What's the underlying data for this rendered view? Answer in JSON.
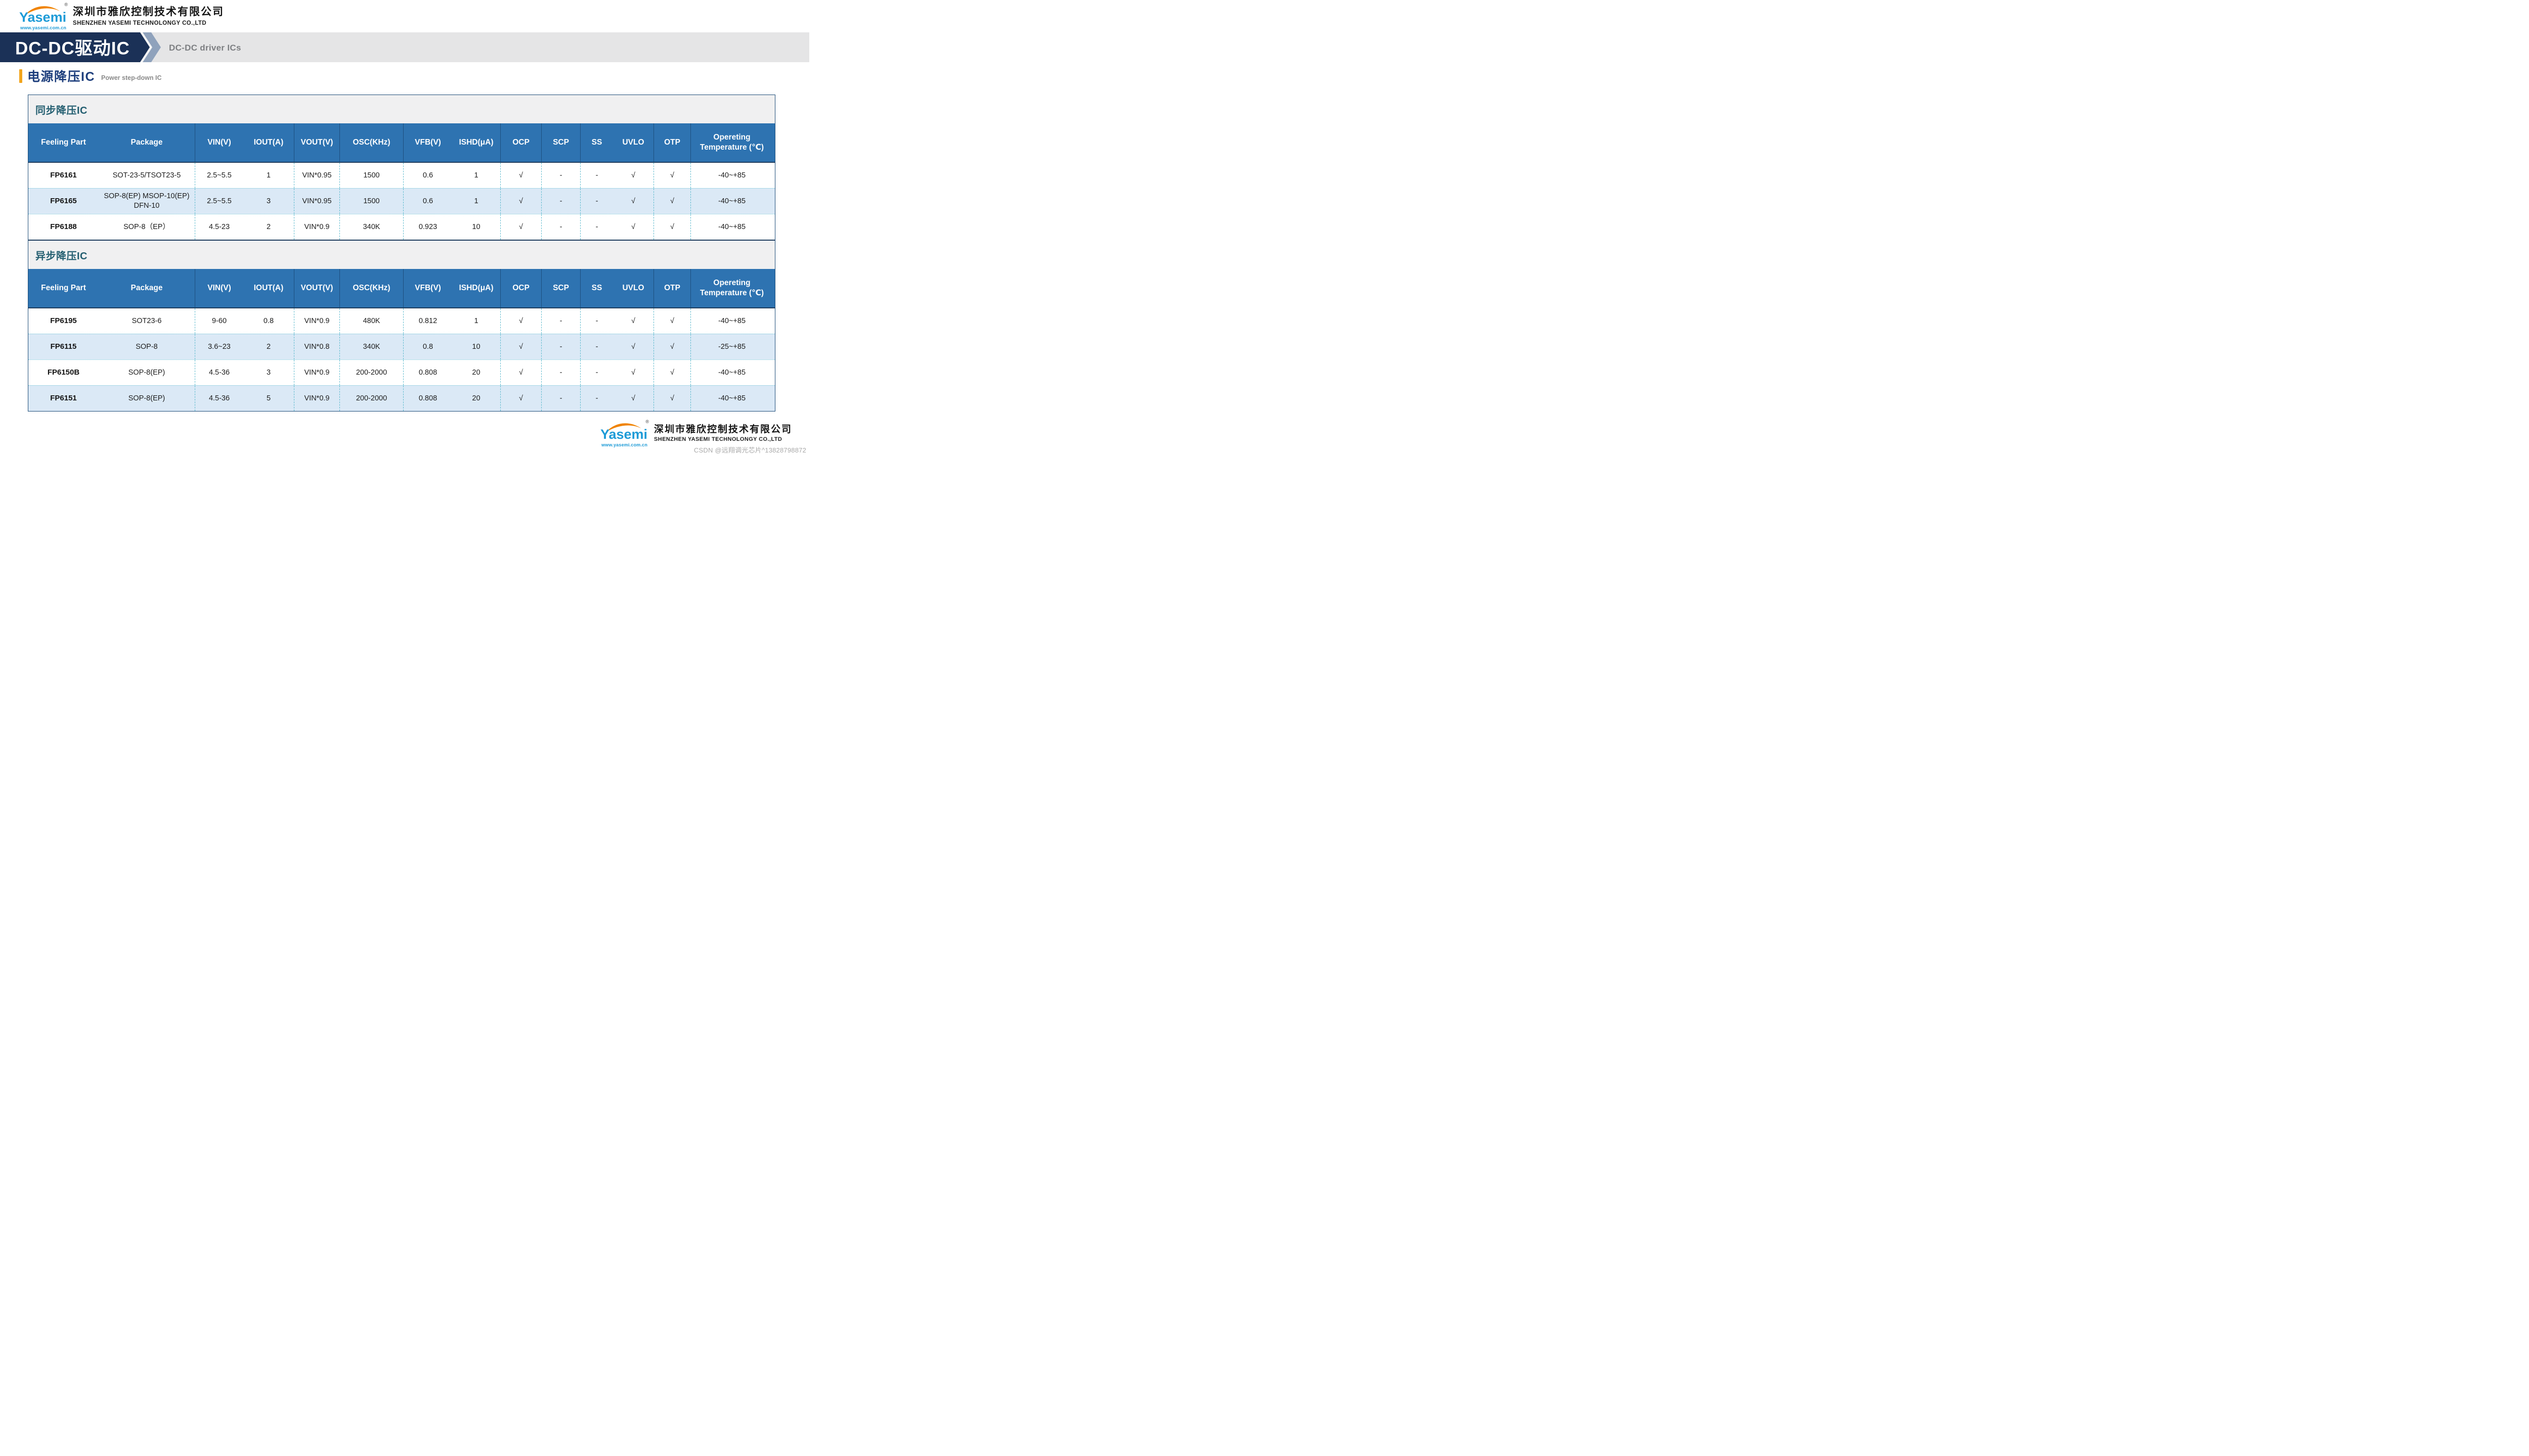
{
  "brand": {
    "name": "Yasemi",
    "reg": "®",
    "website": "www.yasemi.com.cn",
    "company_cn": "深圳市雅欣控制技术有限公司",
    "company_en": "SHENZHEN YASEMI TECHNOLONGY CO.,LTD",
    "blue": "#1e9bd7",
    "orange": "#f08300"
  },
  "banner": {
    "title": "DC-DC驱动IC",
    "subtitle": "DC-DC driver ICs",
    "navy": "#1b3157",
    "gray_band": "#e5e5e6",
    "chevron": "#8fa2bc"
  },
  "section": {
    "title_cn": "电源降压IC",
    "title_en": "Power step-down IC",
    "accent_orange": "#f2a51d",
    "title_navy": "#1d3e7c"
  },
  "table": {
    "columns": [
      "Feeling Part",
      "Package",
      "VIN(V)",
      "IOUT(A)",
      "VOUT(V)",
      "OSC(KHz)",
      "VFB(V)",
      "ISHD(μA)",
      "OCP",
      "SCP",
      "SS",
      "UVLO",
      "OTP",
      "Opereting Temperature (℃)"
    ],
    "separators_after": [
      1,
      3,
      4,
      5,
      7,
      8,
      9,
      11,
      12
    ],
    "groups": [
      {
        "label": "同步降压IC",
        "rows": [
          [
            "FP6161",
            "SOT-23-5/TSOT23-5",
            "2.5~5.5",
            "1",
            "VIN*0.95",
            "1500",
            "0.6",
            "1",
            "√",
            "-",
            "-",
            "√",
            "√",
            "-40~+85"
          ],
          [
            "FP6165",
            "SOP-8(EP) MSOP-10(EP) DFN-10",
            "2.5~5.5",
            "3",
            "VIN*0.95",
            "1500",
            "0.6",
            "1",
            "√",
            "-",
            "-",
            "√",
            "√",
            "-40~+85"
          ],
          [
            "FP6188",
            "SOP-8（EP）",
            "4.5-23",
            "2",
            "VIN*0.9",
            "340K",
            "0.923",
            "10",
            "√",
            "-",
            "-",
            "√",
            "√",
            "-40~+85"
          ]
        ]
      },
      {
        "label": "异步降压IC",
        "rows": [
          [
            "FP6195",
            "SOT23-6",
            "9-60",
            "0.8",
            "VIN*0.9",
            "480K",
            "0.812",
            "1",
            "√",
            "-",
            "-",
            "√",
            "√",
            "-40~+85"
          ],
          [
            "FP6115",
            "SOP-8",
            "3.6~23",
            "2",
            "VIN*0.8",
            "340K",
            "0.8",
            "10",
            "√",
            "-",
            "-",
            "√",
            "√",
            "-25~+85"
          ],
          [
            "FP6150B",
            "SOP-8(EP)",
            "4.5-36",
            "3",
            "VIN*0.9",
            "200-2000",
            "0.808",
            "20",
            "√",
            "-",
            "-",
            "√",
            "√",
            "-40~+85"
          ],
          [
            "FP6151",
            "SOP-8(EP)",
            "4.5-36",
            "5",
            "VIN*0.9",
            "200-2000",
            "0.808",
            "20",
            "√",
            "-",
            "-",
            "√",
            "√",
            "-40~+85"
          ]
        ]
      }
    ],
    "colors": {
      "header_bg": "#2e73b1",
      "alt_row": "#dbe9f6",
      "group_band_bg": "#f0f0f1",
      "group_band_text": "#235e70",
      "frame_navy": "#1f4e79",
      "dashed_divider": "#5ab9cd",
      "dotted_divider": "#6fc3d6"
    }
  },
  "watermark": "CSDN @远翔调光芯片^13828798872"
}
